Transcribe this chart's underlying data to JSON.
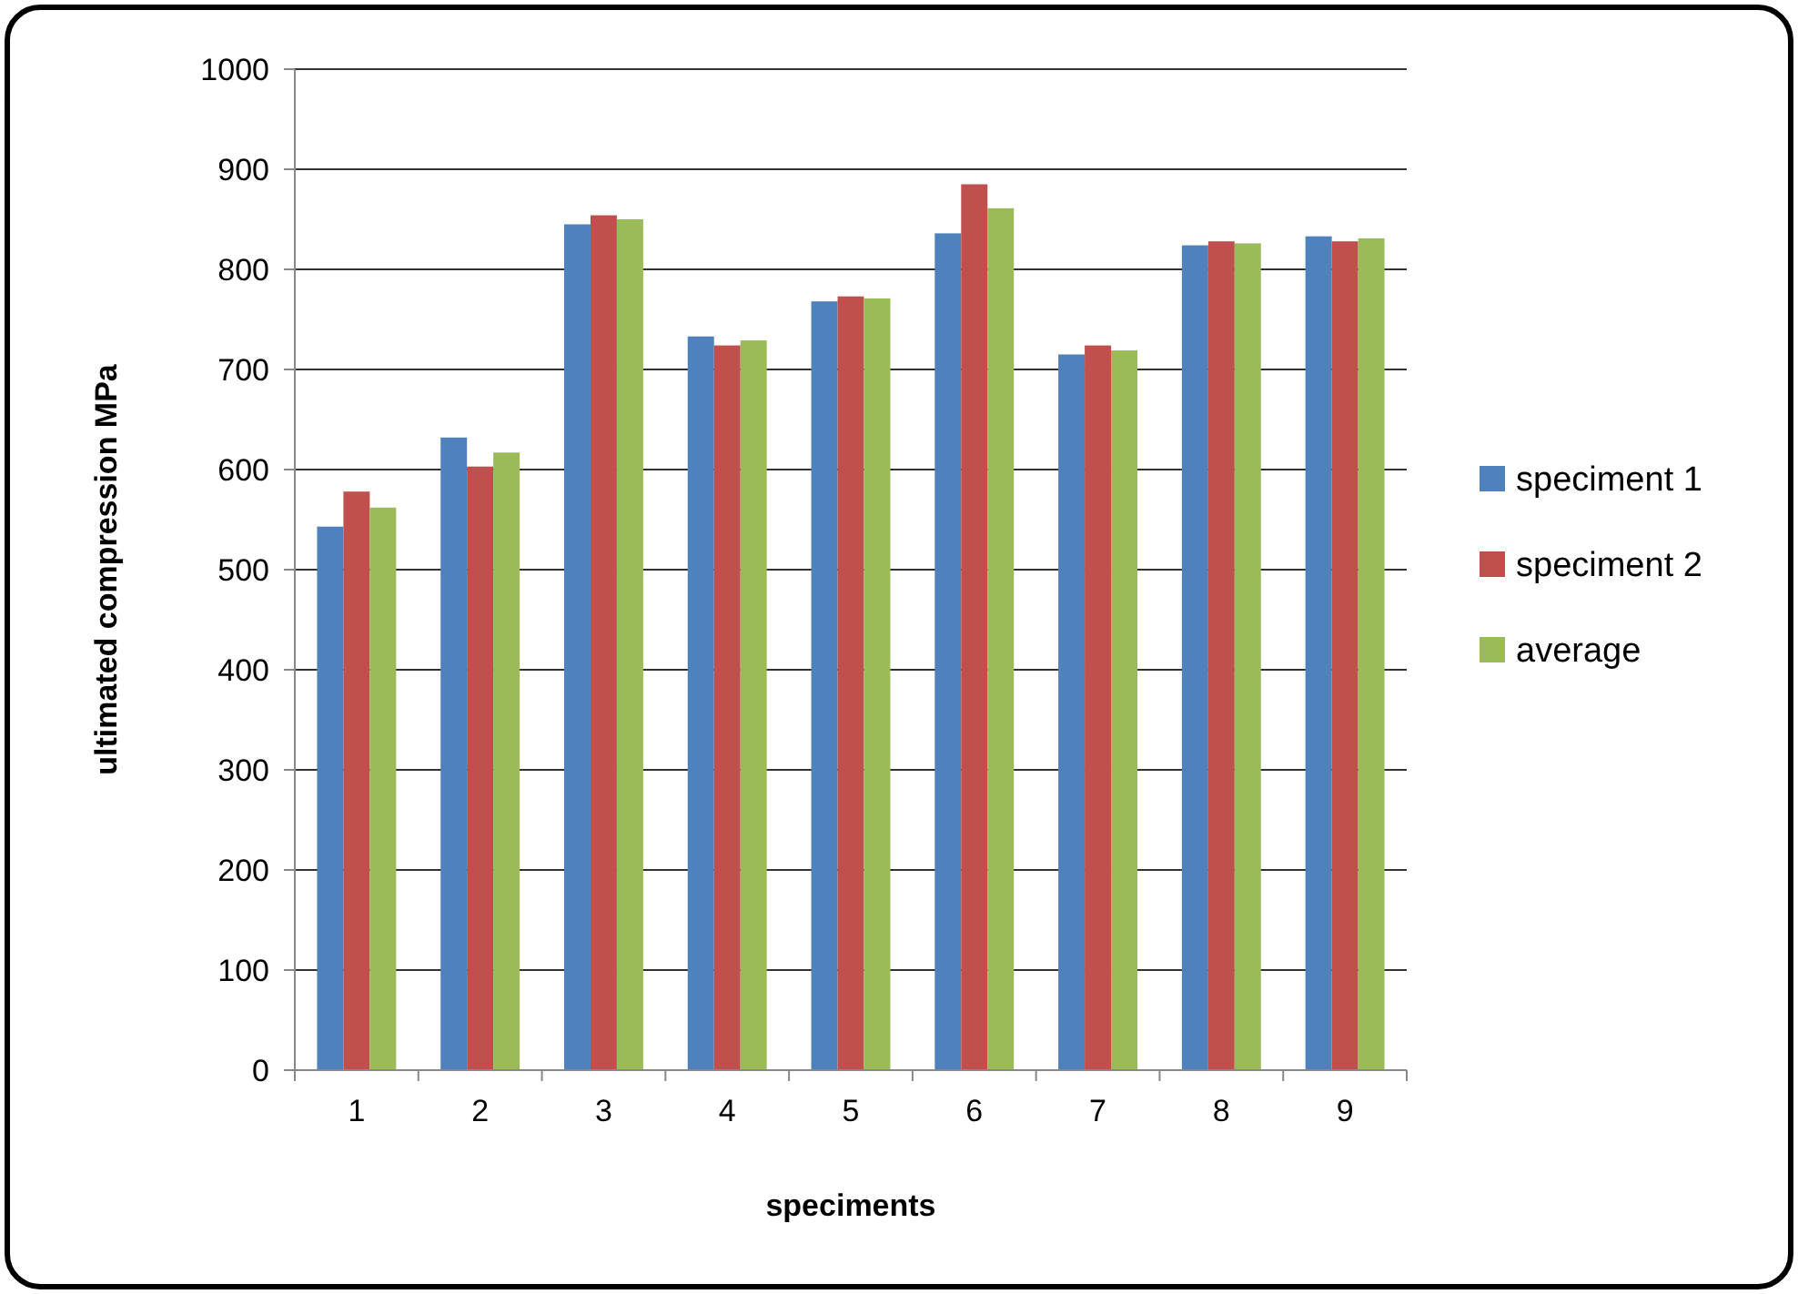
{
  "chart_data": {
    "type": "bar",
    "xlabel": "speciments",
    "ylabel": "ultimated compression MPa",
    "categories": [
      "1",
      "2",
      "3",
      "4",
      "5",
      "6",
      "7",
      "8",
      "9"
    ],
    "series": [
      {
        "name": "speciment 1",
        "color": "#4f81bd",
        "values": [
          543,
          632,
          845,
          733,
          768,
          836,
          715,
          824,
          833
        ]
      },
      {
        "name": "speciment 2",
        "color": "#c0504d",
        "values": [
          578,
          603,
          854,
          724,
          773,
          885,
          724,
          828,
          828
        ]
      },
      {
        "name": "average",
        "color": "#9bbb59",
        "values": [
          562,
          617,
          850,
          729,
          771,
          861,
          719,
          826,
          831
        ]
      }
    ],
    "ylim": [
      0,
      1000
    ],
    "yticks": [
      0,
      100,
      200,
      300,
      400,
      500,
      600,
      700,
      800,
      900,
      1000
    ],
    "grid": "y",
    "legend": "right"
  }
}
